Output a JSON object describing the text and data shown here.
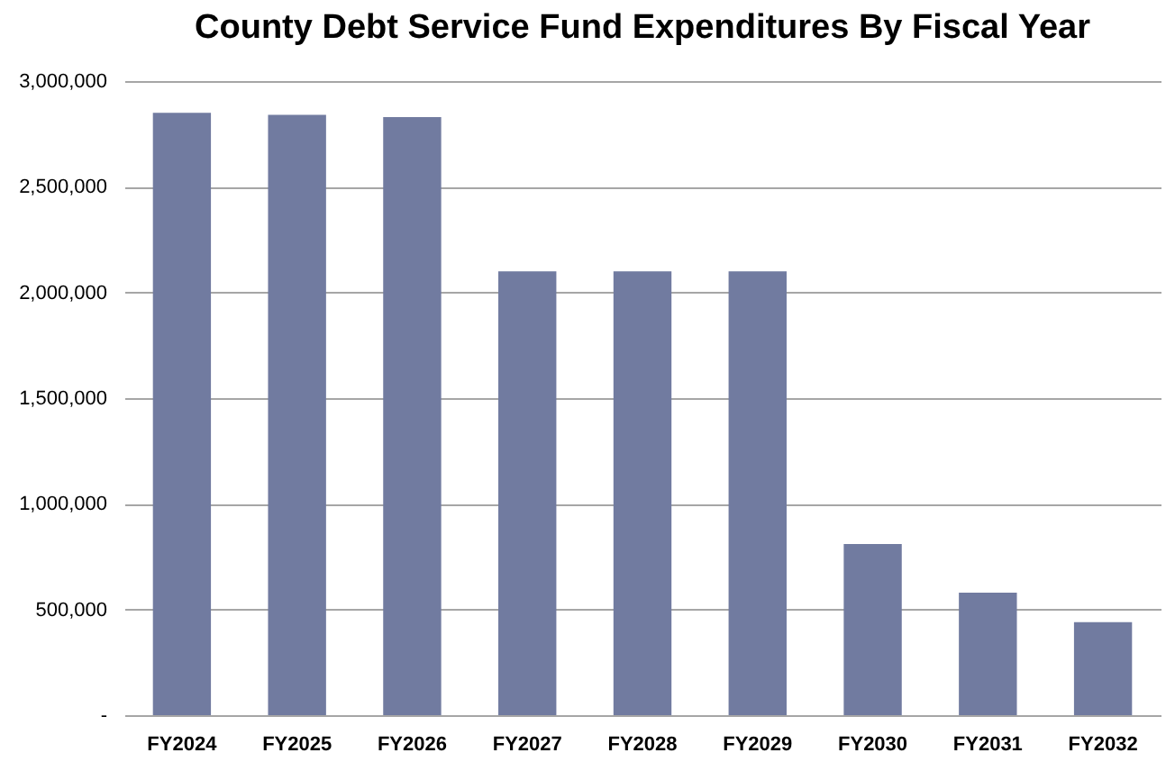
{
  "chart_data": {
    "type": "bar",
    "title": "County Debt Service Fund Expenditures By Fiscal Year",
    "categories": [
      "FY2024",
      "FY2025",
      "FY2026",
      "FY2027",
      "FY2028",
      "FY2029",
      "FY2030",
      "FY2031",
      "FY2032"
    ],
    "values": [
      2850000,
      2840000,
      2830000,
      2100000,
      2100000,
      2100000,
      810000,
      580000,
      440000
    ],
    "color": "#717ba0",
    "ylim": [
      0,
      3000000
    ],
    "yticks": [
      {
        "value": 0,
        "label": "-"
      },
      {
        "value": 500000,
        "label": "500,000"
      },
      {
        "value": 1000000,
        "label": "1,000,000"
      },
      {
        "value": 1500000,
        "label": "1,500,000"
      },
      {
        "value": 2000000,
        "label": "2,000,000"
      },
      {
        "value": 2500000,
        "label": "2,500,000"
      },
      {
        "value": 3000000,
        "label": "3,000,000"
      }
    ],
    "grid": "y"
  }
}
